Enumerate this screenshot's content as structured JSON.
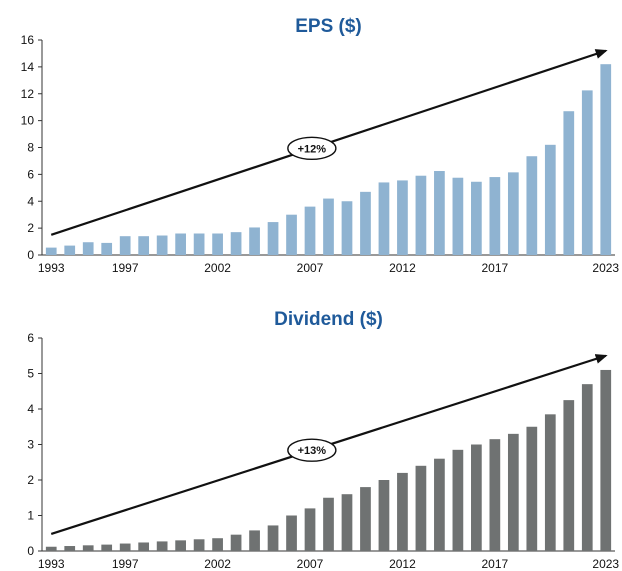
{
  "chart_data": [
    {
      "type": "bar",
      "title": "EPS ($)",
      "xlabel": "",
      "ylabel": "",
      "ylim": [
        0,
        16
      ],
      "yticks": [
        0,
        2,
        4,
        6,
        8,
        10,
        12,
        14,
        16
      ],
      "x_tick_labels": [
        "1993",
        "1997",
        "2002",
        "2007",
        "2012",
        "2017",
        "2023"
      ],
      "categories": [
        "1993",
        "1994",
        "1995",
        "1996",
        "1997",
        "1998",
        "1999",
        "2000",
        "2001",
        "2002",
        "2003",
        "2004",
        "2005",
        "2006",
        "2007",
        "2008",
        "2009",
        "2010",
        "2011",
        "2012",
        "2013",
        "2014",
        "2015",
        "2016",
        "2017",
        "2018",
        "2019",
        "2020",
        "2021",
        "2022",
        "2023"
      ],
      "values": [
        0.55,
        0.7,
        0.95,
        0.9,
        1.4,
        1.4,
        1.45,
        1.6,
        1.6,
        1.6,
        1.7,
        2.05,
        2.45,
        3.0,
        3.6,
        4.2,
        4.0,
        4.7,
        5.4,
        5.55,
        5.9,
        6.25,
        5.75,
        5.45,
        5.8,
        6.15,
        7.35,
        8.2,
        10.7,
        12.25,
        14.2
      ],
      "bar_color": "#8fb3d1",
      "title_color": "#1f5a9a",
      "grid": false,
      "legend": "none",
      "trend_arrow": {
        "start_category": "1993",
        "end_category": "2023",
        "start_value": 1.5,
        "end_value": 15.2
      },
      "annotation": "+12%"
    },
    {
      "type": "bar",
      "title": "Dividend ($)",
      "xlabel": "",
      "ylabel": "",
      "ylim": [
        0,
        6
      ],
      "yticks": [
        0,
        1,
        2,
        3,
        4,
        5,
        6
      ],
      "x_tick_labels": [
        "1993",
        "1997",
        "2002",
        "2007",
        "2012",
        "2017",
        "2023"
      ],
      "categories": [
        "1993",
        "1994",
        "1995",
        "1996",
        "1997",
        "1998",
        "1999",
        "2000",
        "2001",
        "2002",
        "2003",
        "2004",
        "2005",
        "2006",
        "2007",
        "2008",
        "2009",
        "2010",
        "2011",
        "2012",
        "2013",
        "2014",
        "2015",
        "2016",
        "2017",
        "2018",
        "2019",
        "2020",
        "2021",
        "2022",
        "2023"
      ],
      "values": [
        0.12,
        0.14,
        0.16,
        0.18,
        0.21,
        0.24,
        0.27,
        0.3,
        0.33,
        0.36,
        0.46,
        0.58,
        0.72,
        1.0,
        1.2,
        1.5,
        1.6,
        1.8,
        2.0,
        2.2,
        2.4,
        2.6,
        2.85,
        3.0,
        3.15,
        3.3,
        3.5,
        3.85,
        4.25,
        4.7,
        5.1
      ],
      "bar_color": "#6f7272",
      "title_color": "#1f5a9a",
      "grid": false,
      "legend": "none",
      "trend_arrow": {
        "start_category": "1993",
        "end_category": "2023",
        "start_value": 0.48,
        "end_value": 5.5
      },
      "annotation": "+13%"
    }
  ]
}
